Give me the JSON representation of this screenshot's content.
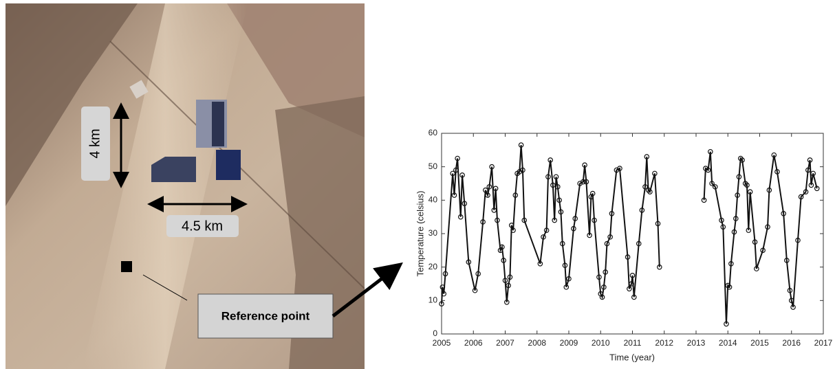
{
  "image_labels": {
    "height": "4 km",
    "width": "4.5 km",
    "reference": "Reference point"
  },
  "chart_data": {
    "type": "line",
    "xlabel": "Time (year)",
    "ylabel": "Temperature (celsius)",
    "xlim": [
      2005,
      2017
    ],
    "xticks": [
      2005,
      2006,
      2007,
      2008,
      2009,
      2010,
      2011,
      2012,
      2013,
      2014,
      2015,
      2016,
      2017
    ],
    "ylim": [
      0,
      60
    ],
    "yticks": [
      0,
      10,
      20,
      30,
      40,
      50,
      60
    ],
    "color": "#111111",
    "x": [
      2005.0,
      2005.03,
      2005.07,
      2005.12,
      2005.35,
      2005.4,
      2005.45,
      2005.5,
      2005.6,
      2005.65,
      2005.72,
      2005.85,
      2006.05,
      2006.15,
      2006.3,
      2006.38,
      2006.45,
      2006.5,
      2006.58,
      2006.65,
      2006.7,
      2006.75,
      2006.85,
      2006.9,
      2006.95,
      2007.0,
      2007.05,
      2007.1,
      2007.15,
      2007.2,
      2007.25,
      2007.32,
      2007.38,
      2007.45,
      2007.5,
      2007.55,
      2007.6,
      2008.1,
      2008.2,
      2008.3,
      2008.35,
      2008.42,
      2008.5,
      2008.55,
      2008.6,
      2008.65,
      2008.7,
      2008.75,
      2008.8,
      2008.88,
      2008.92,
      2009.0,
      2009.15,
      2009.2,
      2009.35,
      2009.45,
      2009.5,
      2009.55,
      2009.65,
      2009.7,
      2009.75,
      2009.8,
      2009.95,
      2010.0,
      2010.05,
      2010.1,
      2010.15,
      2010.2,
      2010.3,
      2010.35,
      2010.5,
      2010.6,
      2010.85,
      2010.9,
      2010.97,
      2011.0,
      2011.05,
      2011.2,
      2011.3,
      2011.4,
      2011.45,
      2011.5,
      2011.55,
      2011.7,
      2011.8,
      2011.85,
      2012.5,
      2013.25,
      2013.3,
      2013.38,
      2013.45,
      2013.5,
      2013.6,
      2013.8,
      2013.85,
      2013.95,
      2014.0,
      2014.05,
      2014.1,
      2014.2,
      2014.25,
      2014.3,
      2014.35,
      2014.4,
      2014.45,
      2014.55,
      2014.6,
      2014.65,
      2014.7,
      2014.85,
      2014.9,
      2015.1,
      2015.25,
      2015.3,
      2015.45,
      2015.55,
      2015.75,
      2015.85,
      2015.95,
      2016.0,
      2016.05,
      2016.2,
      2016.3,
      2016.45,
      2016.52,
      2016.58,
      2016.62,
      2016.68,
      2016.8
    ],
    "values": [
      9,
      14,
      12,
      18,
      48,
      41.5,
      49,
      52.5,
      35,
      47.5,
      39,
      21.5,
      13,
      18,
      33.5,
      43,
      41.5,
      44,
      50,
      37,
      43.5,
      34,
      25,
      26,
      22,
      16,
      9.5,
      14.5,
      17,
      32.5,
      31,
      41.5,
      48,
      48.5,
      56.5,
      49,
      34,
      21,
      29,
      31,
      47,
      52,
      44.5,
      34,
      47,
      44,
      40,
      36.5,
      27,
      20.5,
      14,
      16.5,
      31.5,
      34.5,
      45,
      45.5,
      50.5,
      45.5,
      29.5,
      41,
      42,
      34,
      17,
      12,
      11,
      14,
      18.5,
      27,
      29,
      36,
      49,
      49.5,
      23,
      13.5,
      15,
      17.5,
      11,
      27,
      37,
      44,
      53,
      43,
      42.5,
      48,
      33,
      20,
      null,
      40,
      49.5,
      49,
      54.5,
      45,
      44,
      34,
      32,
      3,
      14.5,
      14,
      21,
      30.5,
      34.5,
      41.5,
      47,
      52.5,
      52,
      45,
      44.5,
      31,
      42.5,
      27.5,
      19.5,
      25,
      32,
      43,
      53.5,
      48.5,
      36,
      22,
      13,
      10,
      8,
      28,
      41,
      42.5,
      49,
      52,
      44.5,
      48,
      43.5
    ]
  }
}
